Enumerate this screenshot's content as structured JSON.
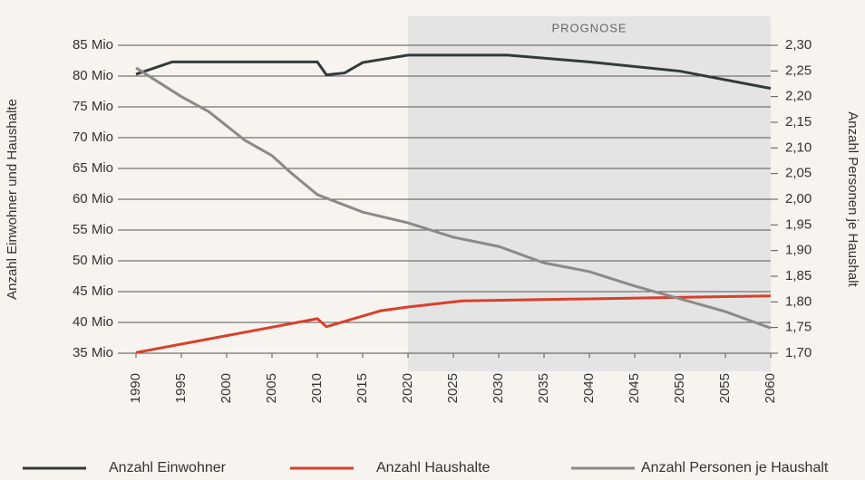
{
  "chart_data": {
    "type": "line",
    "y_label": "Anzahl Einwohner und Haushalte",
    "y2_label": "Anzahl Personen je Haushalt",
    "annotations": [
      {
        "text": "PROGNOSE",
        "x_start": 2020,
        "x_end": 2060
      }
    ],
    "xlim": [
      1990,
      2060
    ],
    "xticks": [
      1990,
      1995,
      2000,
      2005,
      2010,
      2015,
      2020,
      2025,
      2030,
      2035,
      2040,
      2045,
      2050,
      2055,
      2060
    ],
    "ylim": [
      35,
      85
    ],
    "yticks": [
      {
        "value": 35,
        "label": "35 Mio"
      },
      {
        "value": 40,
        "label": "40 Mio"
      },
      {
        "value": 45,
        "label": "45 Mio"
      },
      {
        "value": 50,
        "label": "50 Mio"
      },
      {
        "value": 55,
        "label": "55 Mio"
      },
      {
        "value": 60,
        "label": "60 Mio"
      },
      {
        "value": 65,
        "label": "65 Mio"
      },
      {
        "value": 70,
        "label": "70 Mio"
      },
      {
        "value": 75,
        "label": "75 Mio"
      },
      {
        "value": 80,
        "label": "80 Mio"
      },
      {
        "value": 85,
        "label": "85 Mio"
      }
    ],
    "y2lim": [
      1.7,
      2.3
    ],
    "y2ticks": [
      {
        "value": 1.7,
        "label": "1,70"
      },
      {
        "value": 1.75,
        "label": "1,75"
      },
      {
        "value": 1.8,
        "label": "1,80"
      },
      {
        "value": 1.85,
        "label": "1,85"
      },
      {
        "value": 1.9,
        "label": "1,90"
      },
      {
        "value": 1.95,
        "label": "1,95"
      },
      {
        "value": 2.0,
        "label": "2,00"
      },
      {
        "value": 2.05,
        "label": "2,05"
      },
      {
        "value": 2.1,
        "label": "2,10"
      },
      {
        "value": 2.15,
        "label": "2,15"
      },
      {
        "value": 2.2,
        "label": "2,20"
      },
      {
        "value": 2.25,
        "label": "2,25"
      },
      {
        "value": 2.3,
        "label": "2,30"
      }
    ],
    "grid": true,
    "legend": "bottom",
    "series": [
      {
        "name": "Anzahl Einwohner",
        "color": "#333a3a",
        "x": [
          1990,
          1994,
          2010,
          2011,
          2013,
          2015,
          2020,
          2031,
          2040,
          2050,
          2060
        ],
        "values": [
          80.3,
          82.3,
          82.3,
          80.2,
          80.5,
          82.2,
          83.4,
          83.4,
          82.3,
          80.8,
          78
        ]
      },
      {
        "name": "Anzahl Haushalte",
        "color": "#d9402b",
        "x": [
          1990,
          2010,
          2011,
          2017,
          2020,
          2026,
          2060
        ],
        "values": [
          35.1,
          40.6,
          39.3,
          41.9,
          42.5,
          43.5,
          44.3
        ]
      },
      {
        "name": "Anzahl Personen je Haushalt",
        "color": "#8a8a8a",
        "axis": "y2",
        "x": [
          1990,
          1995,
          1998,
          2002,
          2005,
          2007,
          2010,
          2015,
          2020,
          2025,
          2030,
          2035,
          2040,
          2045,
          2050,
          2055,
          2060
        ],
        "values": [
          2.256,
          2.2,
          2.171,
          2.115,
          2.085,
          2.053,
          2.009,
          1.975,
          1.954,
          1.926,
          1.908,
          1.876,
          1.859,
          1.831,
          1.806,
          1.781,
          1.749
        ]
      }
    ]
  }
}
